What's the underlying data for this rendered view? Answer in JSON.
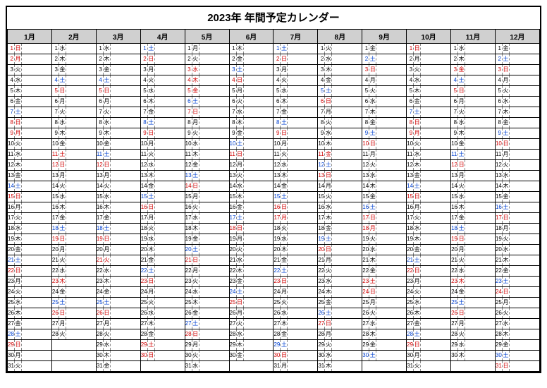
{
  "title": "2023年 年間予定カレンダー",
  "months": [
    "1月",
    "2月",
    "3月",
    "4月",
    "5月",
    "6月",
    "7月",
    "8月",
    "9月",
    "10月",
    "11月",
    "12月"
  ],
  "dow_labels": [
    "日",
    "月",
    "火",
    "水",
    "木",
    "金",
    "土"
  ],
  "colors": {
    "sun": "#d00000",
    "sat": "#0040d0",
    "weekday": "#000000",
    "holiday": "#d00000"
  },
  "start_dow": [
    0,
    3,
    3,
    6,
    1,
    4,
    6,
    2,
    5,
    0,
    3,
    5
  ],
  "days_in_month": [
    31,
    28,
    31,
    30,
    31,
    30,
    31,
    31,
    30,
    31,
    30,
    31
  ],
  "holidays": {
    "1": [
      1,
      2,
      9
    ],
    "2": [
      11,
      23
    ],
    "3": [
      21
    ],
    "4": [
      29
    ],
    "5": [
      3,
      4,
      5
    ],
    "6": [],
    "7": [
      17
    ],
    "8": [
      11
    ],
    "9": [
      18,
      23
    ],
    "10": [
      9
    ],
    "11": [
      3,
      23
    ],
    "12": []
  },
  "max_rows": 31
}
